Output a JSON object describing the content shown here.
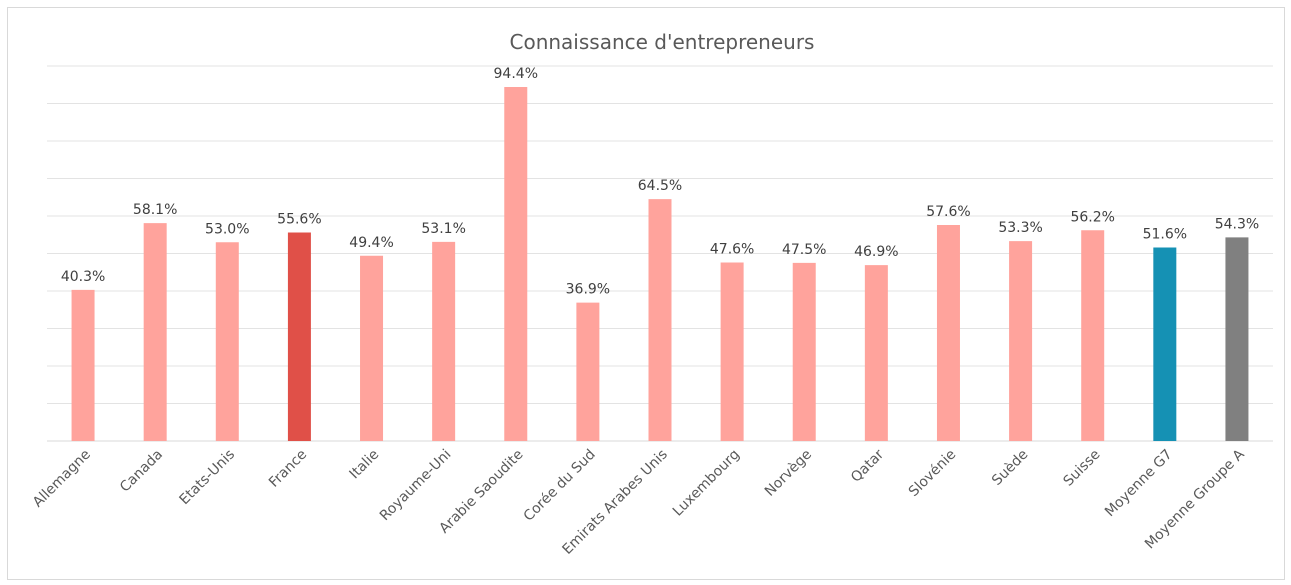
{
  "chart_data": {
    "type": "bar",
    "title": "Connaissance d'entrepreneurs",
    "categories": [
      "Allemagne",
      "Canada",
      "Etats-Unis",
      "France",
      "Italie",
      "Royaume-Uni",
      "Arabie Saoudite",
      "Corée du Sud",
      "Emirats Arabes Unis",
      "Luxembourg",
      "Norvège",
      "Qatar",
      "Slovénie",
      "Suède",
      "Suisse",
      "Moyenne G7",
      "Moyenne Groupe A"
    ],
    "values": [
      40.3,
      58.1,
      53.0,
      55.6,
      49.4,
      53.1,
      94.4,
      36.9,
      64.5,
      47.6,
      47.5,
      46.9,
      57.6,
      53.3,
      56.2,
      51.6,
      54.3
    ],
    "value_labels": [
      "40.3%",
      "58.1%",
      "53.0%",
      "55.6%",
      "49.4%",
      "53.1%",
      "94.4%",
      "36.9%",
      "64.5%",
      "47.6%",
      "47.5%",
      "46.9%",
      "57.6%",
      "53.3%",
      "56.2%",
      "51.6%",
      "54.3%"
    ],
    "bar_colors": [
      "#ffa39c",
      "#ffa39c",
      "#ffa39c",
      "#e05048",
      "#ffa39c",
      "#ffa39c",
      "#ffa39c",
      "#ffa39c",
      "#ffa39c",
      "#ffa39c",
      "#ffa39c",
      "#ffa39c",
      "#ffa39c",
      "#ffa39c",
      "#ffa39c",
      "#1591b4",
      "#808080"
    ],
    "ylim": [
      0,
      100
    ],
    "grid": true,
    "legend": "none",
    "xlabel": "",
    "ylabel": ""
  }
}
